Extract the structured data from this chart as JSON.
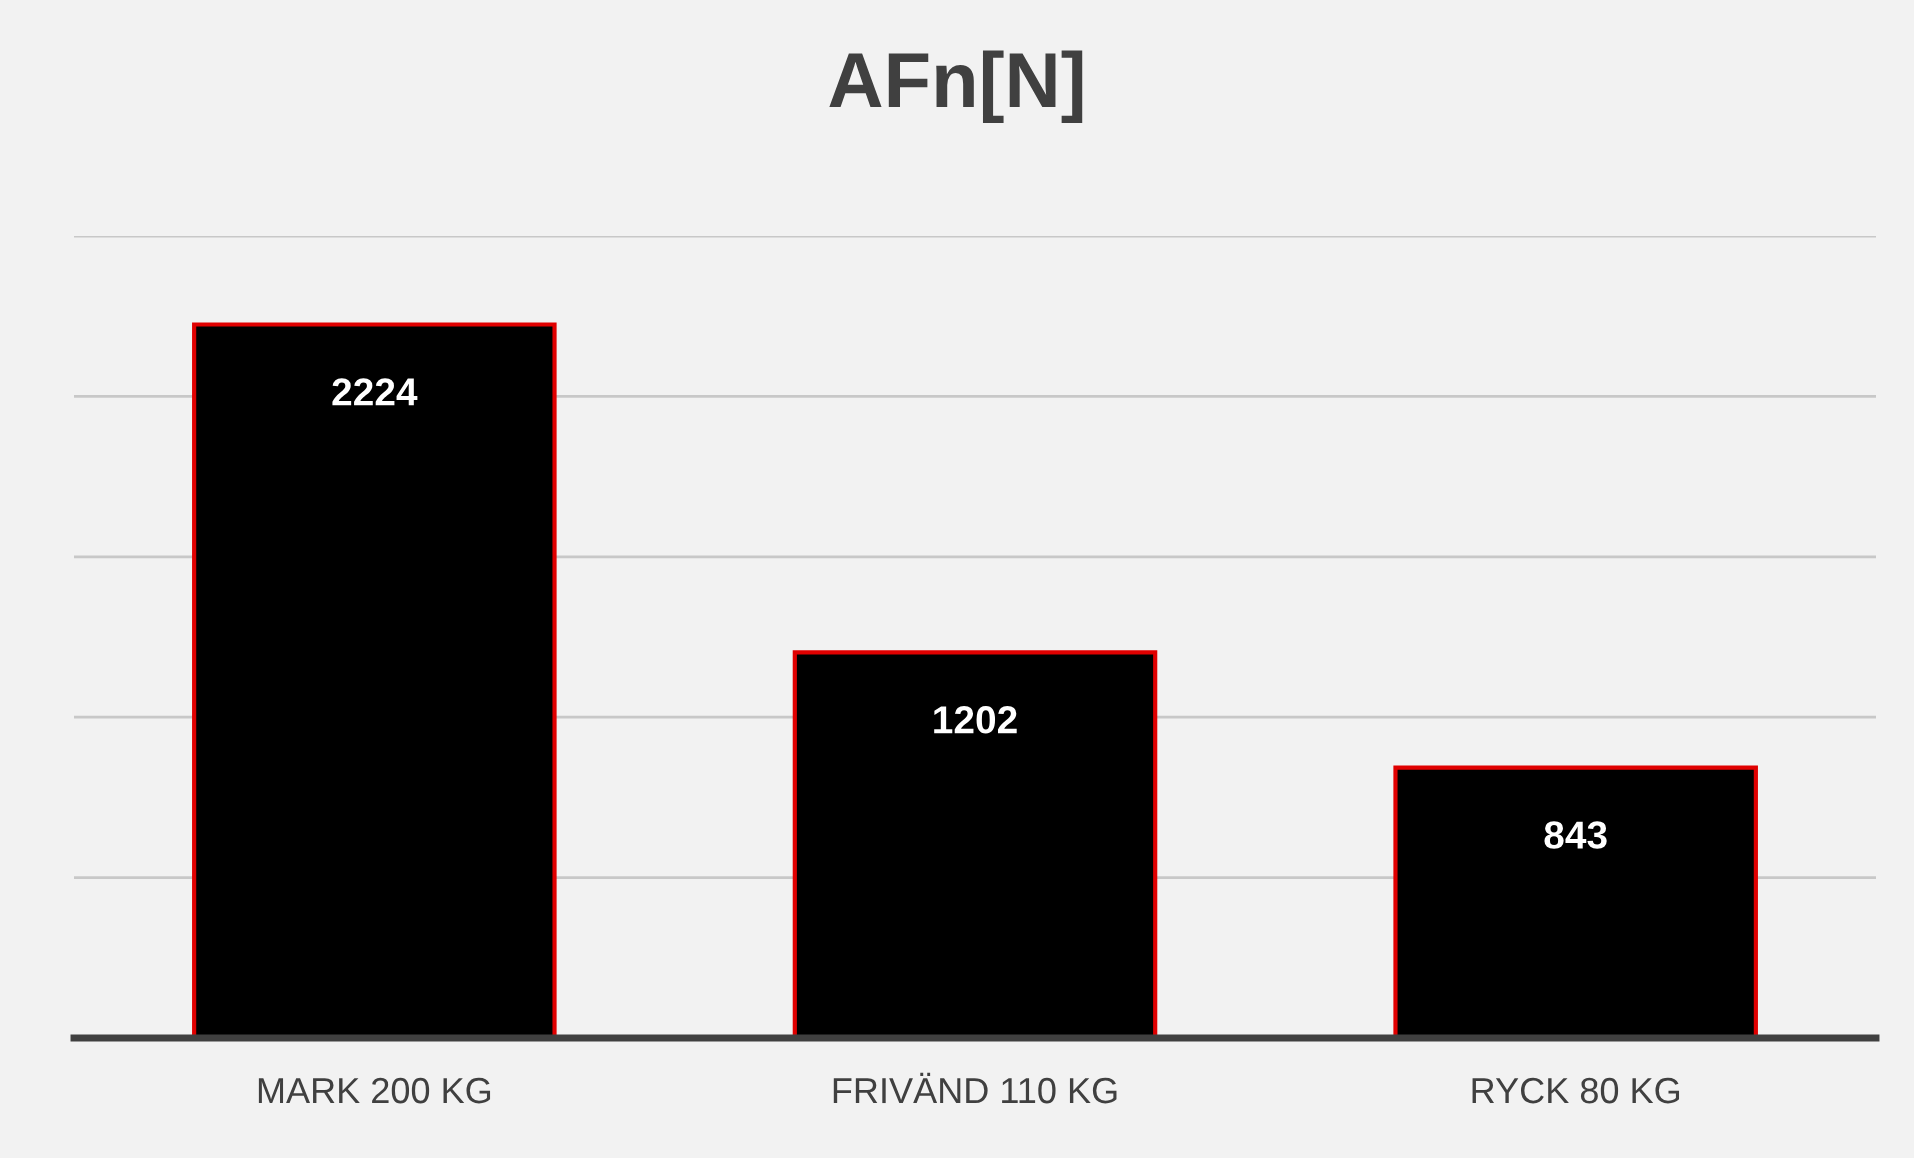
{
  "chart_data": {
    "type": "bar",
    "title": "AFn[N]",
    "categories": [
      "MARK 200 KG",
      "FRIVÄND 110 KG",
      "RYCK 80 KG"
    ],
    "values": [
      2224,
      1202,
      843
    ],
    "color": "#000000",
    "ylim": [
      0,
      2500
    ],
    "yticks": [
      {
        "value": 0,
        "label": null
      },
      {
        "value": 500,
        "label": null
      },
      {
        "value": 1000,
        "label": null
      },
      {
        "value": 1500,
        "label": null
      },
      {
        "value": 2000,
        "label": null
      },
      {
        "value": 2500,
        "label": null
      }
    ],
    "tick_labels": "x",
    "grid": "y",
    "legend": false,
    "data_labels": true
  }
}
